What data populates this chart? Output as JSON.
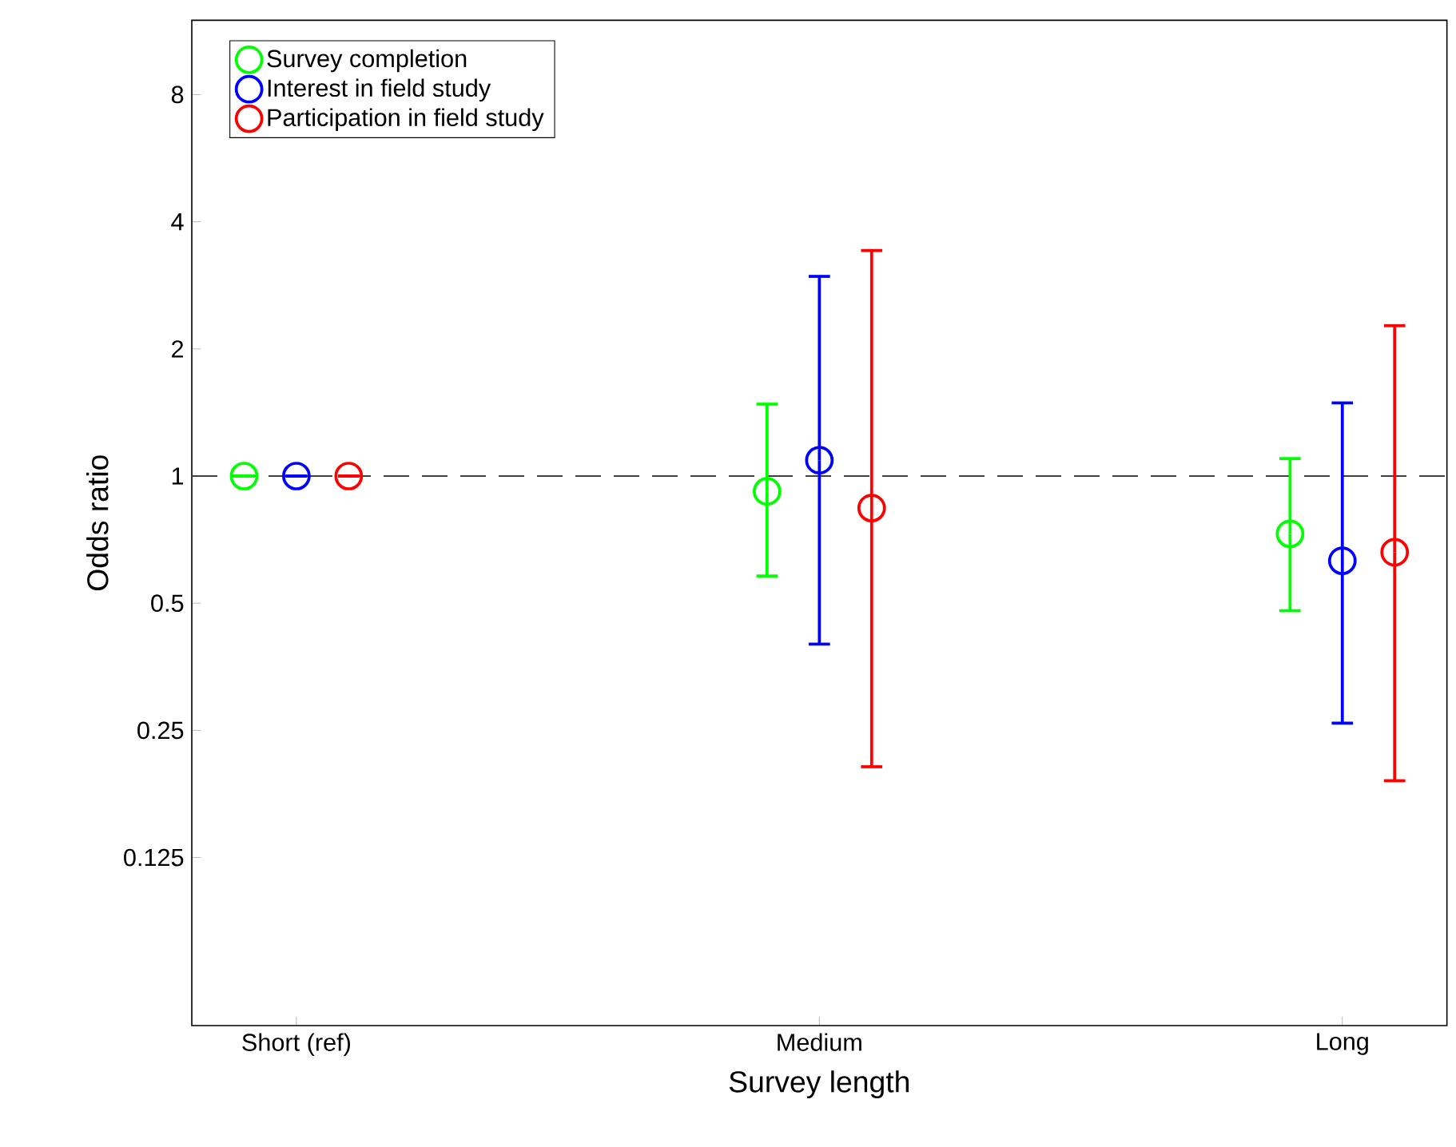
{
  "chart_data": {
    "type": "scatter",
    "xlabel": "Survey length",
    "ylabel": "Odds ratio",
    "categories": [
      "Short (ref)",
      "Medium",
      "Long"
    ],
    "series": [
      {
        "name": "Survey completion",
        "color": "#00ff00",
        "values": [
          1,
          0.92,
          0.73
        ],
        "errors": [
          null,
          [
            0.58,
            1.48
          ],
          [
            0.48,
            1.1
          ]
        ]
      },
      {
        "name": "Interest in field study",
        "color": "#0000ff",
        "values": [
          1,
          1.09,
          0.63
        ],
        "errors": [
          null,
          [
            0.4,
            2.97
          ],
          [
            0.26,
            1.49
          ]
        ]
      },
      {
        "name": "Participation in field study",
        "color": "#ff0000",
        "values": [
          1,
          0.84,
          0.66
        ],
        "errors": [
          null,
          [
            0.205,
            3.42
          ],
          [
            0.19,
            2.27
          ]
        ]
      }
    ],
    "log": "y",
    "ylim": [
      0.05,
      12
    ],
    "yticks": [
      0.125,
      0.25,
      0.5,
      1,
      2,
      4,
      8
    ],
    "ref_lines": [
      {
        "axis": "y",
        "value": 1,
        "color": "#404040",
        "line_style": "dashed"
      }
    ],
    "marker": "circle",
    "legend": "top left",
    "grid": false
  }
}
